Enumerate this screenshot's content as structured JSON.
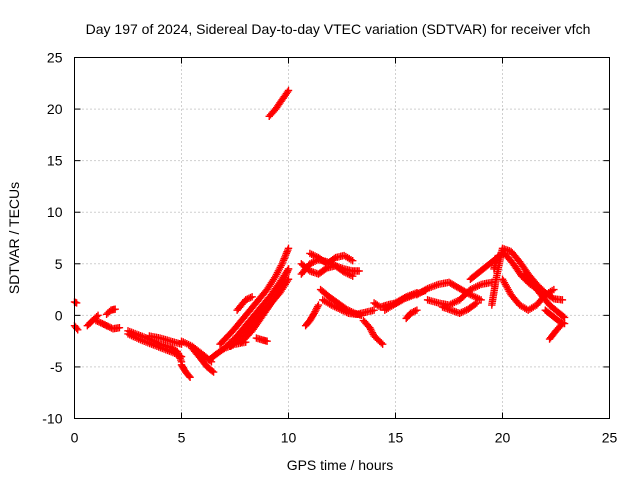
{
  "chart_data": {
    "type": "scatter",
    "title": "Day 197 of 2024, Sidereal Day-to-day VTEC variation (SDTVAR) for receiver vfch",
    "xlabel": "GPS time / hours",
    "ylabel": "SDTVAR / TECUs",
    "xlim": [
      0,
      25
    ],
    "ylim": [
      -10,
      25
    ],
    "xticks": [
      0,
      5,
      10,
      15,
      20,
      25
    ],
    "yticks": [
      -10,
      -5,
      0,
      5,
      10,
      15,
      20,
      25
    ],
    "grid": true,
    "marker": "+",
    "color": "#ff0000",
    "tracks": [
      {
        "x": [
          0.0,
          0.1
        ],
        "y": [
          1.3,
          1.2
        ]
      },
      {
        "x": [
          0.0,
          0.15
        ],
        "y": [
          -1.0,
          -1.4
        ]
      },
      {
        "x": [
          0.6,
          0.9,
          1.1
        ],
        "y": [
          -1.0,
          -0.4,
          0.0
        ]
      },
      {
        "x": [
          1.0,
          1.3,
          1.5
        ],
        "y": [
          -0.5,
          -0.8,
          -1.0
        ]
      },
      {
        "x": [
          1.5,
          1.7,
          1.9
        ],
        "y": [
          0.1,
          0.5,
          0.6
        ]
      },
      {
        "x": [
          1.5,
          1.8,
          2.1
        ],
        "y": [
          -1.0,
          -1.3,
          -1.2
        ]
      },
      {
        "x": [
          2.5,
          3.0,
          3.5,
          4.0,
          4.5,
          4.8,
          5.0
        ],
        "y": [
          -1.5,
          -1.9,
          -2.3,
          -2.8,
          -3.1,
          -3.5,
          -4.5
        ]
      },
      {
        "x": [
          2.5,
          3.0,
          3.6,
          4.1,
          4.6,
          5.0
        ],
        "y": [
          -1.8,
          -2.3,
          -2.8,
          -3.2,
          -3.6,
          -4.0
        ]
      },
      {
        "x": [
          3.5,
          4.0,
          4.5,
          5.0
        ],
        "y": [
          -2.0,
          -2.2,
          -2.5,
          -2.8
        ]
      },
      {
        "x": [
          5.0,
          5.2,
          5.4
        ],
        "y": [
          -4.8,
          -5.5,
          -6.0
        ]
      },
      {
        "x": [
          5.0,
          5.5,
          6.0,
          6.4
        ],
        "y": [
          -2.5,
          -3.0,
          -3.8,
          -4.5
        ]
      },
      {
        "x": [
          5.5,
          5.9,
          6.2,
          6.5
        ],
        "y": [
          -3.2,
          -4.2,
          -5.0,
          -5.5
        ]
      },
      {
        "x": [
          6.3,
          6.6,
          7.0,
          7.5,
          8.0
        ],
        "y": [
          -4.3,
          -3.8,
          -3.2,
          -2.8,
          -2.6
        ]
      },
      {
        "x": [
          6.8,
          7.4,
          8.0,
          8.6,
          9.0,
          9.4,
          9.7,
          10.0
        ],
        "y": [
          -2.8,
          -1.5,
          0.0,
          1.5,
          2.5,
          3.8,
          5.0,
          6.5
        ]
      },
      {
        "x": [
          7.0,
          7.6,
          8.2,
          8.8,
          9.2,
          9.6,
          10.0
        ],
        "y": [
          -3.2,
          -2.0,
          -0.5,
          1.0,
          2.0,
          3.2,
          4.5
        ]
      },
      {
        "x": [
          7.3,
          7.9,
          8.5,
          9.1,
          9.6,
          10.0
        ],
        "y": [
          -3.0,
          -1.8,
          -0.5,
          1.0,
          2.2,
          3.5
        ]
      },
      {
        "x": [
          7.8,
          8.3,
          8.8,
          9.3,
          9.8,
          10.0
        ],
        "y": [
          -2.6,
          -1.5,
          0.0,
          1.5,
          3.5,
          4.5
        ]
      },
      {
        "x": [
          7.6,
          8.0,
          8.3
        ],
        "y": [
          0.5,
          1.5,
          1.8
        ]
      },
      {
        "x": [
          8.5,
          8.8,
          9.0
        ],
        "y": [
          -2.2,
          -2.4,
          -2.5
        ]
      },
      {
        "x": [
          9.1,
          9.4,
          9.7,
          10.0
        ],
        "y": [
          19.3,
          20.0,
          20.9,
          21.8
        ]
      },
      {
        "x": [
          10.6,
          11.0,
          11.4,
          11.8,
          12.2,
          12.6,
          13.0,
          13.3
        ],
        "y": [
          4.0,
          5.0,
          5.4,
          5.2,
          4.8,
          4.5,
          4.3,
          4.3
        ]
      },
      {
        "x": [
          10.6,
          11.0,
          11.4,
          11.8,
          12.2,
          12.6,
          13.0
        ],
        "y": [
          5.0,
          4.3,
          4.0,
          4.6,
          4.8,
          4.2,
          3.8
        ]
      },
      {
        "x": [
          11.0,
          11.4,
          11.8,
          12.2,
          12.6,
          13.0
        ],
        "y": [
          6.0,
          5.6,
          5.0,
          5.6,
          5.8,
          5.3
        ]
      },
      {
        "x": [
          10.8,
          11.0,
          11.2,
          11.4
        ],
        "y": [
          -1.0,
          -0.5,
          0.2,
          1.0
        ]
      },
      {
        "x": [
          11.5,
          11.9,
          12.3,
          12.7,
          13.1,
          13.4
        ],
        "y": [
          2.5,
          1.8,
          1.2,
          0.6,
          0.2,
          0.0
        ]
      },
      {
        "x": [
          11.6,
          12.0,
          12.4,
          12.8,
          13.2,
          13.6,
          14.0
        ],
        "y": [
          1.5,
          1.0,
          0.6,
          0.2,
          0.1,
          0.3,
          0.5
        ]
      },
      {
        "x": [
          13.5,
          13.8,
          14.0,
          14.4
        ],
        "y": [
          -0.5,
          -1.2,
          -2.0,
          -2.8
        ]
      },
      {
        "x": [
          14.0,
          14.3,
          14.6,
          15.0,
          15.5,
          16.0
        ],
        "y": [
          1.2,
          0.8,
          1.0,
          1.2,
          1.8,
          2.2
        ]
      },
      {
        "x": [
          14.5,
          14.9,
          15.4,
          15.9,
          16.4
        ],
        "y": [
          0.5,
          1.0,
          1.6,
          2.0,
          2.4
        ]
      },
      {
        "x": [
          15.5,
          15.7,
          16.0
        ],
        "y": [
          -0.3,
          0.2,
          0.5
        ]
      },
      {
        "x": [
          16.0,
          16.5,
          17.0,
          17.5,
          18.0,
          18.5,
          19.0
        ],
        "y": [
          2.0,
          2.6,
          3.0,
          3.2,
          2.6,
          2.0,
          1.5
        ]
      },
      {
        "x": [
          16.5,
          17.0,
          17.5,
          18.0,
          18.5,
          19.0,
          19.5
        ],
        "y": [
          1.5,
          1.2,
          1.0,
          1.5,
          2.5,
          3.0,
          3.2
        ]
      },
      {
        "x": [
          17.2,
          17.6,
          18.0,
          18.4,
          18.8
        ],
        "y": [
          0.8,
          0.5,
          0.2,
          0.6,
          1.2
        ]
      },
      {
        "x": [
          18.5,
          18.8,
          19.1,
          19.4,
          19.7
        ],
        "y": [
          3.5,
          4.0,
          4.5,
          5.0,
          5.5
        ]
      },
      {
        "x": [
          19.5,
          19.7,
          20.0,
          20.4,
          20.8,
          21.2,
          21.6,
          22.0,
          22.4,
          22.8
        ],
        "y": [
          1.0,
          3.5,
          6.5,
          6.2,
          5.2,
          4.0,
          3.0,
          2.2,
          1.6,
          1.5
        ]
      },
      {
        "x": [
          19.6,
          19.8,
          20.1,
          20.5,
          20.9,
          21.3,
          21.7
        ],
        "y": [
          4.5,
          5.8,
          6.0,
          5.0,
          3.8,
          3.0,
          2.5
        ]
      },
      {
        "x": [
          20.0,
          20.4,
          20.8,
          21.2,
          21.6,
          22.0,
          22.4
        ],
        "y": [
          3.5,
          2.0,
          1.0,
          0.5,
          1.0,
          2.0,
          2.5
        ]
      },
      {
        "x": [
          21.0,
          21.4,
          21.8,
          22.2,
          22.6,
          22.9
        ],
        "y": [
          4.0,
          3.0,
          2.0,
          1.0,
          0.3,
          -0.2
        ]
      },
      {
        "x": [
          22.0,
          22.3,
          22.6,
          22.9
        ],
        "y": [
          0.5,
          0.0,
          -0.5,
          -0.8
        ]
      },
      {
        "x": [
          22.2,
          22.5,
          22.8
        ],
        "y": [
          -2.3,
          -1.5,
          -0.8
        ]
      }
    ]
  }
}
